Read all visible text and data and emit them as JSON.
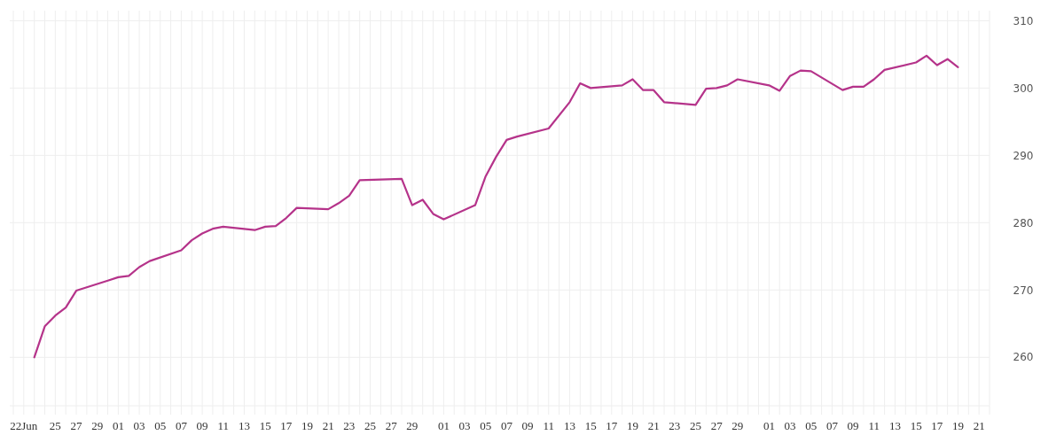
{
  "chart_data": {
    "type": "line",
    "color": "#b5338a",
    "grid": true,
    "x": [
      "--06-23",
      "--06-24",
      "--06-25",
      "--06-26",
      "--06-27",
      "--06-30",
      "--07-01",
      "--07-02",
      "--07-03",
      "--07-04",
      "--07-07",
      "--07-08",
      "--07-09",
      "--07-10",
      "--07-11",
      "--07-14",
      "--07-15",
      "--07-16",
      "--07-17",
      "--07-18",
      "--07-21",
      "--07-22",
      "--07-23",
      "--07-24",
      "--07-28",
      "--07-29",
      "--07-30",
      "--07-31",
      "--08-01",
      "--08-04",
      "--08-05",
      "--08-06",
      "--08-07",
      "--08-08",
      "--08-11",
      "--08-13",
      "--08-14",
      "--08-15",
      "--08-18",
      "--08-19",
      "--08-20",
      "--08-21",
      "--08-22",
      "--08-25",
      "--08-26",
      "--08-27",
      "--08-28",
      "--08-29",
      "--09-01",
      "--09-02",
      "--09-03",
      "--09-04",
      "--09-05",
      "--09-08",
      "--09-09",
      "--09-10",
      "--09-11",
      "--09-12",
      "--09-15",
      "--09-16",
      "--09-17",
      "--09-18",
      "--09-19"
    ],
    "values": [
      260.0,
      264.6,
      266.2,
      267.4,
      269.9,
      271.4,
      271.9,
      272.1,
      273.4,
      274.3,
      275.9,
      277.4,
      278.4,
      279.1,
      279.4,
      278.9,
      279.4,
      279.5,
      280.7,
      282.2,
      282.0,
      282.9,
      284.0,
      286.3,
      286.5,
      282.6,
      283.4,
      281.3,
      280.5,
      282.6,
      286.9,
      289.8,
      292.3,
      292.8,
      294.0,
      297.9,
      300.7,
      300.0,
      300.4,
      301.3,
      299.7,
      299.7,
      297.9,
      297.5,
      299.9,
      300.0,
      300.4,
      301.3,
      300.4,
      299.6,
      301.8,
      302.6,
      302.5,
      299.7,
      300.2,
      300.2,
      301.3,
      302.7,
      303.8,
      304.8,
      303.4,
      304.3,
      303.1
    ],
    "xlim": [
      "--06-21",
      "--09-22"
    ],
    "ylim": [
      252.8,
      311.5
    ],
    "yticks": [
      260,
      270,
      280,
      290,
      300,
      310
    ],
    "xticks": [
      {
        "value": "--06-21",
        "label": null
      },
      {
        "value": "--06-22",
        "label": "22Jun"
      },
      {
        "value": "--06-23",
        "label": null
      },
      {
        "value": "--06-24",
        "label": null
      },
      {
        "value": "--06-25",
        "label": "25"
      },
      {
        "value": "--06-26",
        "label": null
      },
      {
        "value": "--06-27",
        "label": "27"
      },
      {
        "value": "--06-28",
        "label": null
      },
      {
        "value": "--06-29",
        "label": "29"
      },
      {
        "value": "--06-30",
        "label": null
      },
      {
        "value": "--07-01",
        "label": "01"
      },
      {
        "value": "--07-02",
        "label": null
      },
      {
        "value": "--07-03",
        "label": "03"
      },
      {
        "value": "--07-04",
        "label": null
      },
      {
        "value": "--07-05",
        "label": "05"
      },
      {
        "value": "--07-06",
        "label": null
      },
      {
        "value": "--07-07",
        "label": "07"
      },
      {
        "value": "--07-08",
        "label": null
      },
      {
        "value": "--07-09",
        "label": "09"
      },
      {
        "value": "--07-10",
        "label": null
      },
      {
        "value": "--07-11",
        "label": "11"
      },
      {
        "value": "--07-12",
        "label": null
      },
      {
        "value": "--07-13",
        "label": "13"
      },
      {
        "value": "--07-14",
        "label": null
      },
      {
        "value": "--07-15",
        "label": "15"
      },
      {
        "value": "--07-16",
        "label": null
      },
      {
        "value": "--07-17",
        "label": "17"
      },
      {
        "value": "--07-18",
        "label": null
      },
      {
        "value": "--07-19",
        "label": "19"
      },
      {
        "value": "--07-20",
        "label": null
      },
      {
        "value": "--07-21",
        "label": "21"
      },
      {
        "value": "--07-22",
        "label": null
      },
      {
        "value": "--07-23",
        "label": "23"
      },
      {
        "value": "--07-24",
        "label": null
      },
      {
        "value": "--07-25",
        "label": "25"
      },
      {
        "value": "--07-26",
        "label": null
      },
      {
        "value": "--07-27",
        "label": "27"
      },
      {
        "value": "--07-28",
        "label": null
      },
      {
        "value": "--07-29",
        "label": "29"
      },
      {
        "value": "--07-30",
        "label": null
      },
      {
        "value": "--07-31",
        "label": null
      },
      {
        "value": "--08-01",
        "label": "01"
      },
      {
        "value": "--08-02",
        "label": null
      },
      {
        "value": "--08-03",
        "label": "03"
      },
      {
        "value": "--08-04",
        "label": null
      },
      {
        "value": "--08-05",
        "label": "05"
      },
      {
        "value": "--08-06",
        "label": null
      },
      {
        "value": "--08-07",
        "label": "07"
      },
      {
        "value": "--08-08",
        "label": null
      },
      {
        "value": "--08-09",
        "label": "09"
      },
      {
        "value": "--08-10",
        "label": null
      },
      {
        "value": "--08-11",
        "label": "11"
      },
      {
        "value": "--08-12",
        "label": null
      },
      {
        "value": "--08-13",
        "label": "13"
      },
      {
        "value": "--08-14",
        "label": null
      },
      {
        "value": "--08-15",
        "label": "15"
      },
      {
        "value": "--08-16",
        "label": null
      },
      {
        "value": "--08-17",
        "label": "17"
      },
      {
        "value": "--08-18",
        "label": null
      },
      {
        "value": "--08-19",
        "label": "19"
      },
      {
        "value": "--08-20",
        "label": null
      },
      {
        "value": "--08-21",
        "label": "21"
      },
      {
        "value": "--08-22",
        "label": null
      },
      {
        "value": "--08-23",
        "label": "23"
      },
      {
        "value": "--08-24",
        "label": null
      },
      {
        "value": "--08-25",
        "label": "25"
      },
      {
        "value": "--08-26",
        "label": null
      },
      {
        "value": "--08-27",
        "label": "27"
      },
      {
        "value": "--08-28",
        "label": null
      },
      {
        "value": "--08-29",
        "label": "29"
      },
      {
        "value": "--08-30",
        "label": null
      },
      {
        "value": "--08-31",
        "label": null
      },
      {
        "value": "--09-01",
        "label": "01"
      },
      {
        "value": "--09-02",
        "label": null
      },
      {
        "value": "--09-03",
        "label": "03"
      },
      {
        "value": "--09-04",
        "label": null
      },
      {
        "value": "--09-05",
        "label": "05"
      },
      {
        "value": "--09-06",
        "label": null
      },
      {
        "value": "--09-07",
        "label": "07"
      },
      {
        "value": "--09-08",
        "label": null
      },
      {
        "value": "--09-09",
        "label": "09"
      },
      {
        "value": "--09-10",
        "label": null
      },
      {
        "value": "--09-11",
        "label": "11"
      },
      {
        "value": "--09-12",
        "label": null
      },
      {
        "value": "--09-13",
        "label": "13"
      },
      {
        "value": "--09-14",
        "label": null
      },
      {
        "value": "--09-15",
        "label": "15"
      },
      {
        "value": "--09-16",
        "label": null
      },
      {
        "value": "--09-17",
        "label": "17"
      },
      {
        "value": "--09-18",
        "label": null
      },
      {
        "value": "--09-19",
        "label": "19"
      },
      {
        "value": "--09-20",
        "label": null
      },
      {
        "value": "--09-21",
        "label": "21"
      },
      {
        "value": "--09-22",
        "label": null
      }
    ]
  }
}
